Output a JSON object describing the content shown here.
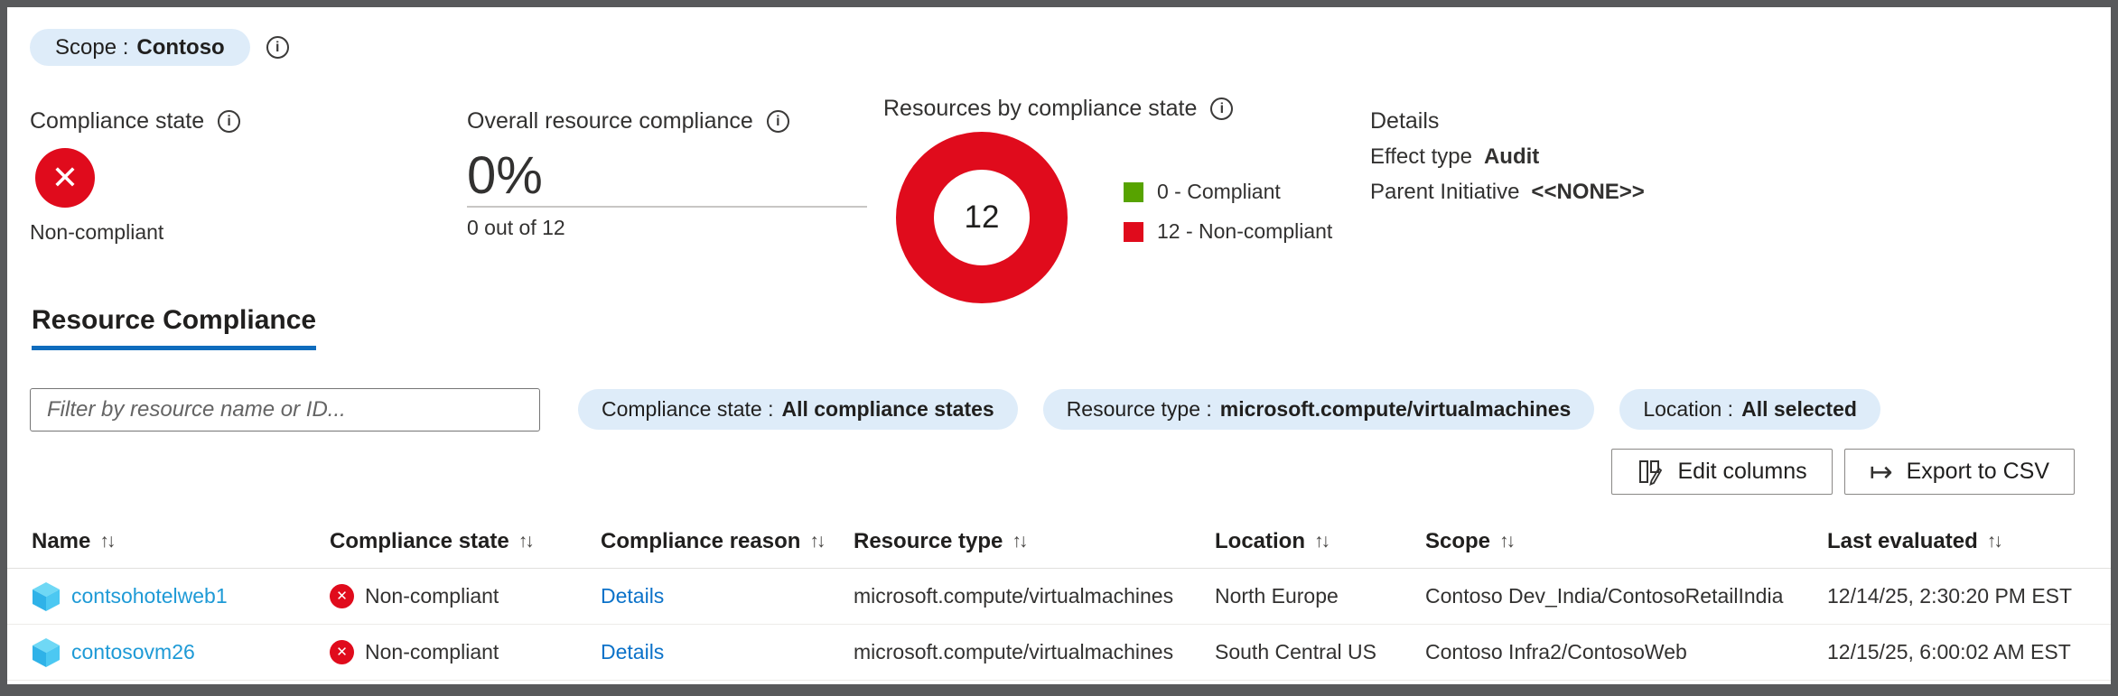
{
  "icons": {
    "info": "i",
    "x": "✕",
    "export": "↦",
    "sort": "↑↓"
  },
  "colors": {
    "accent": "#0078d4",
    "non_compliant_red": "#e00b1c",
    "compliant_green": "#57a300",
    "pill_bg": "#deecf9"
  },
  "scope_pill": {
    "label": "Scope :",
    "value": "Contoso"
  },
  "summary": {
    "compliance_state": {
      "title": "Compliance state",
      "status": "Non-compliant"
    },
    "overall": {
      "title": "Overall resource compliance",
      "percent": "0%",
      "fraction": "0 out of 12"
    },
    "details": {
      "title": "Details",
      "effect_type_label": "Effect type",
      "effect_type_value": "Audit",
      "parent_initiative_label": "Parent Initiative",
      "parent_initiative_value": "<<NONE>>"
    }
  },
  "chart_data": {
    "type": "pie",
    "title": "Resources by compliance state",
    "center_label": "12",
    "total": 12,
    "segments": [
      {
        "label": "0 - Compliant",
        "value": 0,
        "color": "#57a300"
      },
      {
        "label": "12 - Non-compliant",
        "value": 12,
        "color": "#e00b1c"
      }
    ],
    "legend_position": "right"
  },
  "tab": {
    "label": "Resource Compliance",
    "active": true
  },
  "filter": {
    "placeholder": "Filter by resource name or ID..."
  },
  "filter_pills": [
    {
      "label": "Compliance state :",
      "value": "All compliance states"
    },
    {
      "label": "Resource type :",
      "value": "microsoft.compute/virtualmachines"
    },
    {
      "label": "Location :",
      "value": "All selected"
    }
  ],
  "toolbar": {
    "edit_columns": "Edit columns",
    "export_csv": "Export to CSV"
  },
  "table": {
    "columns": [
      "Name",
      "Compliance state",
      "Compliance reason",
      "Resource type",
      "Location",
      "Scope",
      "Last evaluated"
    ],
    "rows": [
      {
        "name": "contsohotelweb1",
        "compliance_state": "Non-compliant",
        "compliance_reason": "Details",
        "resource_type": "microsoft.compute/virtualmachines",
        "location": "North Europe",
        "scope": "Contoso Dev_India/ContosoRetailIndia",
        "last_evaluated": "12/14/25, 2:30:20 PM EST"
      },
      {
        "name": "contosovm26",
        "compliance_state": "Non-compliant",
        "compliance_reason": "Details",
        "resource_type": "microsoft.compute/virtualmachines",
        "location": "South Central US",
        "scope": "Contoso Infra2/ContosoWeb",
        "last_evaluated": "12/15/25, 6:00:02 AM EST"
      }
    ]
  }
}
